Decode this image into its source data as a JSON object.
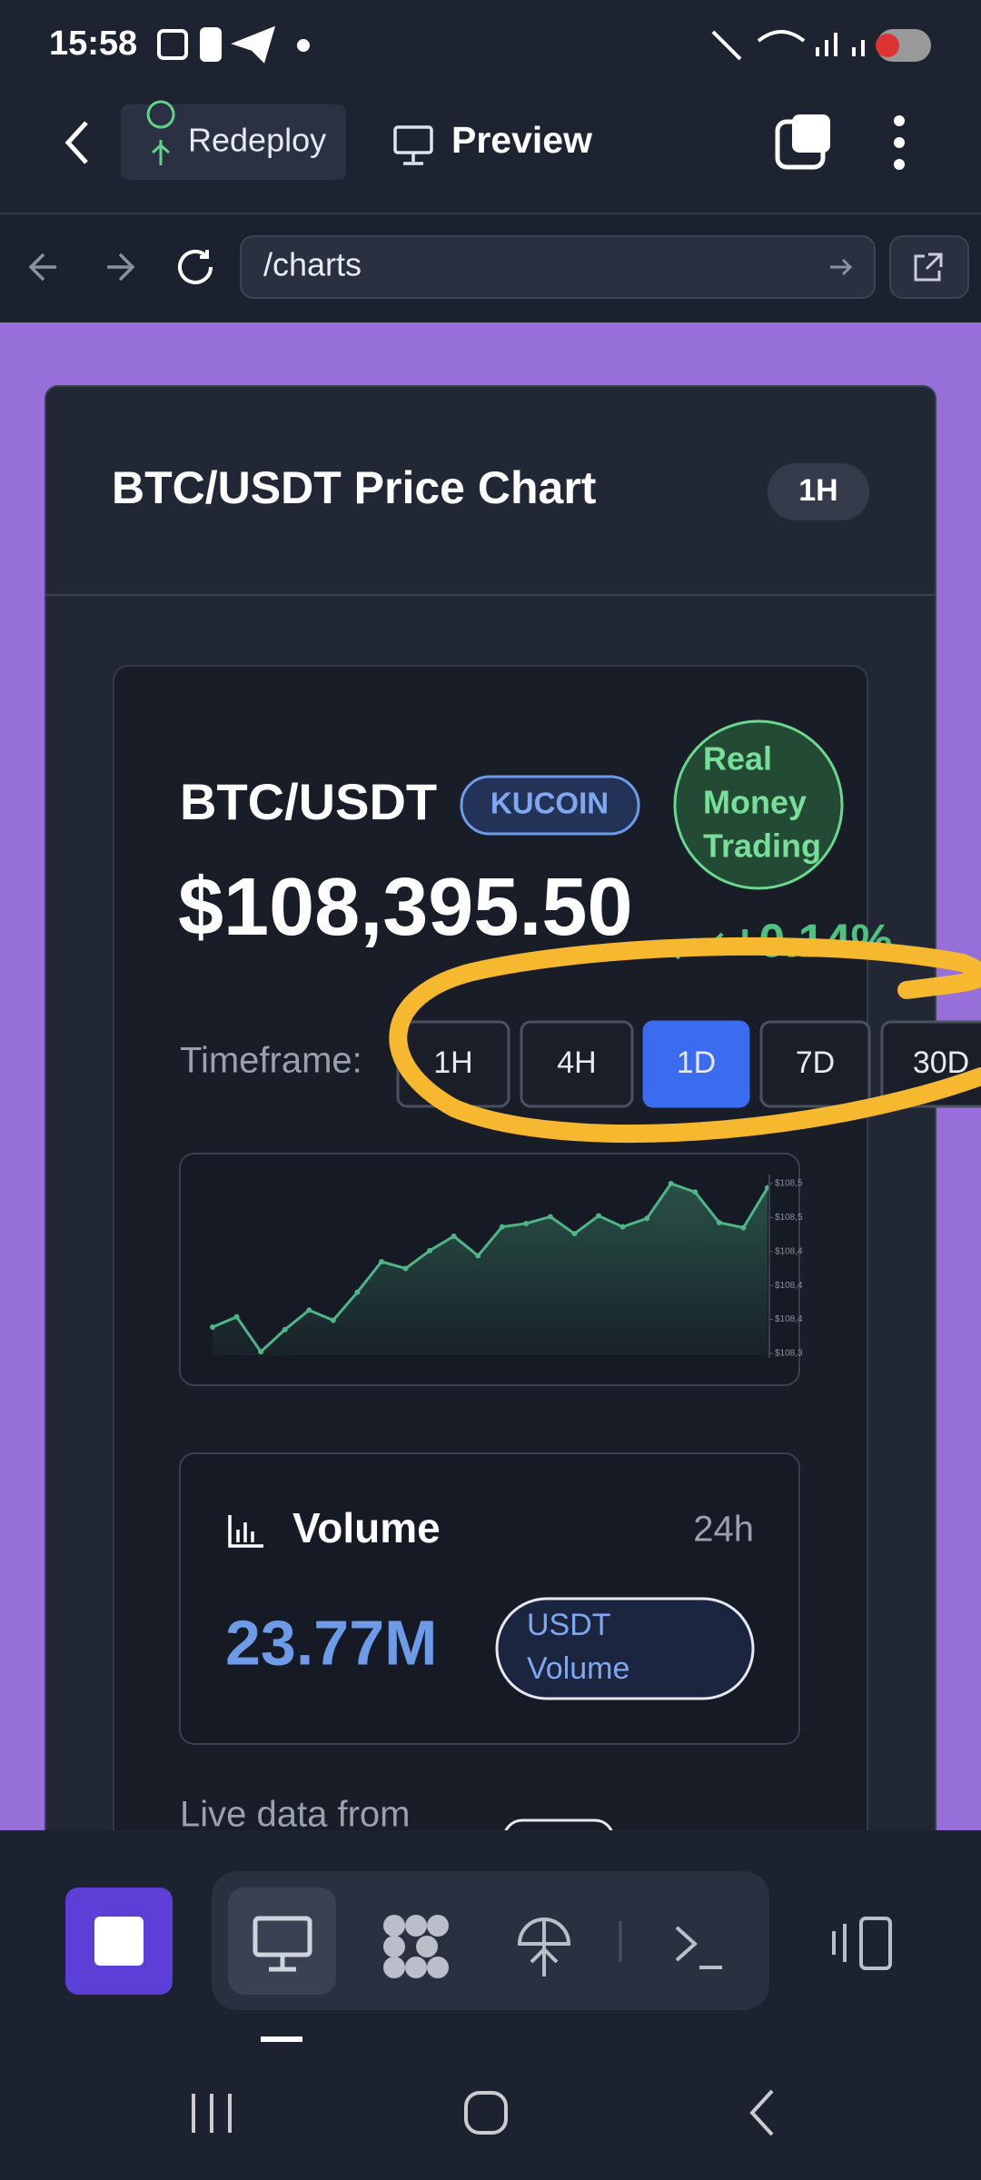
{
  "status_bar": {
    "time": "15:58"
  },
  "toolbar": {
    "redeploy": "Redeploy",
    "preview": "Preview"
  },
  "address_bar": {
    "url": "/charts"
  },
  "card": {
    "title": "BTC/USDT Price Chart",
    "badge": "1H"
  },
  "ticker": {
    "pair": "BTC/USDT",
    "exchange": "KUCOIN",
    "mode": [
      "Real",
      "Money",
      "Trading"
    ],
    "price": "$108,395.50",
    "change": "+0.14%"
  },
  "timeframe": {
    "label": "Timeframe:",
    "options": [
      "1H",
      "4H",
      "1D",
      "7D",
      "30D"
    ],
    "selected": 2
  },
  "chart_data": {
    "type": "line",
    "color": "#4fb486",
    "values": [
      108391,
      108403,
      108362,
      108388,
      108411,
      108399,
      108432,
      108468,
      108460,
      108481,
      108498,
      108475,
      108509,
      108513,
      108521,
      108501,
      108522,
      108509,
      108519,
      108560,
      108550,
      108514,
      108508,
      108555
    ],
    "ylim": [
      108360,
      108560
    ],
    "yticks": [
      {
        "value": 108560,
        "label": "$108,5"
      },
      {
        "value": 108520,
        "label": "$108,5"
      },
      {
        "value": 108480,
        "label": "$108,4"
      },
      {
        "value": 108440,
        "label": "$108,4"
      },
      {
        "value": 108400,
        "label": "$108,4"
      },
      {
        "value": 108360,
        "label": "$108,3"
      }
    ]
  },
  "volume": {
    "title": "Volume",
    "period": "24h",
    "value": "23.77M",
    "unit": [
      "USDT",
      "Volume"
    ]
  },
  "footer": {
    "source": "Live data from"
  }
}
